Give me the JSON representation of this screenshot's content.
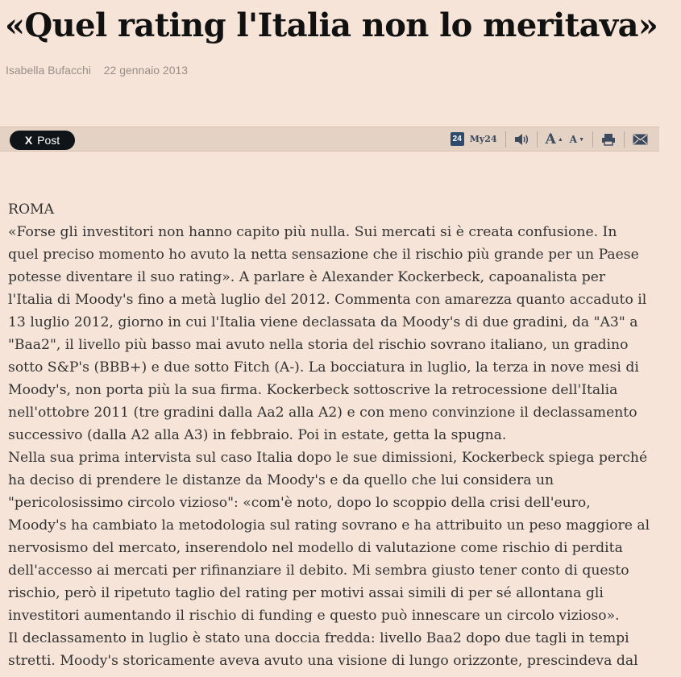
{
  "article": {
    "title": "«Quel rating l'Italia non lo meritava»",
    "author": "Isabella Bufacchi",
    "date": "22 gennaio 2013",
    "lines": [
      "ROMA",
      "«Forse gli investitori non hanno capito più nulla. Sui mercati si è creata confusione. In",
      "quel preciso momento ho avuto la netta sensazione che il rischio più grande per un Paese",
      "potesse diventare il suo rating». A parlare è Alexander Kockerbeck, capoanalista per",
      "l'Italia di Moody's fino a metà luglio del 2012. Commenta con amarezza quanto accaduto il",
      "13 luglio 2012, giorno in cui l'Italia viene declassata da Moody's di due gradini, da \"A3\" a",
      "\"Baa2\", il livello più basso mai avuto nella storia del rischio sovrano italiano, un gradino",
      "sotto S&P's (BBB+) e due sotto Fitch (A-). La bocciatura in luglio, la terza in nove mesi di",
      "Moody's, non porta più la sua firma. Kockerbeck sottoscrive la retrocessione dell'Italia",
      "nell'ottobre 2011 (tre gradini dalla Aa2 alla A2) e con meno convinzione il declassamento",
      "successivo (dalla A2 alla A3) in febbraio. Poi in estate, getta la spugna.",
      "Nella sua prima intervista sul caso Italia dopo le sue dimissioni, Kockerbeck spiega perché",
      "ha deciso di prendere le distanze da Moody's e da quello che lui considera un",
      "\"pericolosissimo circolo vizioso\": «com'è noto, dopo lo scoppio della crisi dell'euro,",
      "Moody's ha cambiato la metodologia sul rating sovrano e ha attribuito un peso maggiore al",
      "nervosismo del mercato, inserendolo nel modello di valutazione come rischio di perdita",
      "dell'accesso ai mercati per rifinanziare il debito. Mi sembra giusto tener conto di questo",
      "rischio, però il ripetuto taglio del rating per motivi assai simili di per sé allontana gli",
      "investitori aumentando il rischio di funding e questo può innescare un circolo vizioso».",
      "Il declassamento in luglio è stato una doccia fredda: livello Baa2 dopo due tagli in tempi",
      "stretti. Moody's storicamente aveva avuto una visione di lungo orizzonte, prescindeva dal"
    ]
  },
  "toolbar": {
    "post_label": "Post",
    "x_icon": "X",
    "my24_badge": "24",
    "my24_label": "My24",
    "font_increase_label": "A",
    "font_decrease_label": "A",
    "icons": [
      "x-logo-icon",
      "my24-icon",
      "speaker-icon",
      "font-increase-icon",
      "font-decrease-icon",
      "print-icon",
      "email-icon"
    ]
  }
}
